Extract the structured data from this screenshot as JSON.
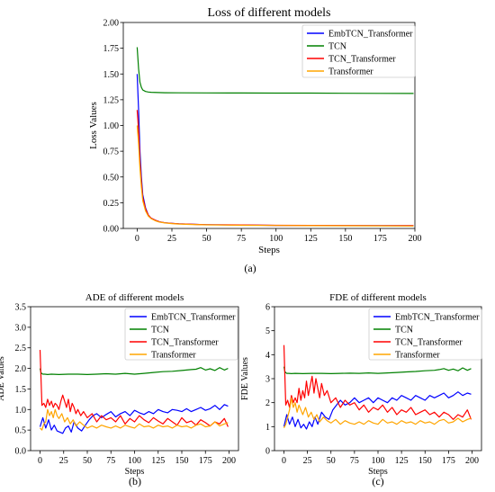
{
  "captions": [
    "(a)",
    "(b)",
    "(c)"
  ],
  "chart_data": [
    {
      "type": "line",
      "title": "Loss of different models",
      "xlabel": "Steps",
      "ylabel": "Loss Values",
      "xlim": [
        -10,
        200
      ],
      "ylim": [
        0,
        2.0
      ],
      "xticks": [
        0,
        25,
        50,
        75,
        100,
        125,
        150,
        175,
        200
      ],
      "yticks": [
        0.0,
        0.25,
        0.5,
        0.75,
        1.0,
        1.25,
        1.5,
        1.75,
        2.0
      ],
      "ytick_labels": [
        "0.00",
        "0.25",
        "0.50",
        "0.75",
        "1.00",
        "1.25",
        "1.50",
        "1.75",
        "2.00"
      ],
      "legend": "top-right",
      "grid": false,
      "series": [
        {
          "name": "EmbTCN_Transformer",
          "color": "#0000ff",
          "x": [
            0,
            1,
            2,
            3,
            4,
            6,
            8,
            10,
            13,
            16,
            20,
            25,
            30,
            40,
            50,
            75,
            100,
            125,
            150,
            175,
            199
          ],
          "y": [
            1.5,
            1.15,
            0.75,
            0.5,
            0.33,
            0.2,
            0.13,
            0.1,
            0.08,
            0.065,
            0.055,
            0.05,
            0.045,
            0.04,
            0.037,
            0.033,
            0.03,
            0.029,
            0.028,
            0.027,
            0.026
          ]
        },
        {
          "name": "TCN",
          "color": "#008000",
          "x": [
            0,
            1,
            2,
            3,
            4,
            6,
            8,
            10,
            15,
            20,
            30,
            50,
            75,
            100,
            125,
            150,
            175,
            199
          ],
          "y": [
            1.76,
            1.55,
            1.42,
            1.37,
            1.345,
            1.33,
            1.325,
            1.322,
            1.32,
            1.318,
            1.317,
            1.316,
            1.315,
            1.314,
            1.314,
            1.313,
            1.312,
            1.311
          ]
        },
        {
          "name": "TCN_Transformer",
          "color": "#ff0000",
          "x": [
            0,
            1,
            2,
            3,
            4,
            6,
            8,
            10,
            13,
            16,
            20,
            25,
            30,
            40,
            50,
            75,
            100,
            125,
            150,
            175,
            199
          ],
          "y": [
            1.15,
            0.95,
            0.65,
            0.45,
            0.3,
            0.19,
            0.13,
            0.1,
            0.08,
            0.065,
            0.055,
            0.05,
            0.045,
            0.04,
            0.037,
            0.034,
            0.031,
            0.03,
            0.029,
            0.028,
            0.027
          ]
        },
        {
          "name": "Transformer",
          "color": "#ffa500",
          "x": [
            0,
            1,
            2,
            3,
            4,
            6,
            8,
            10,
            13,
            16,
            20,
            25,
            30,
            40,
            50,
            75,
            100,
            125,
            150,
            175,
            199
          ],
          "y": [
            1.0,
            0.82,
            0.58,
            0.4,
            0.27,
            0.17,
            0.12,
            0.095,
            0.075,
            0.062,
            0.053,
            0.047,
            0.043,
            0.038,
            0.035,
            0.031,
            0.029,
            0.027,
            0.026,
            0.025,
            0.024
          ]
        }
      ]
    },
    {
      "type": "line",
      "title": "ADE of different models",
      "xlabel": "Steps",
      "ylabel": "ADE Values",
      "xlim": [
        -10,
        210
      ],
      "ylim": [
        0,
        3.5
      ],
      "xticks": [
        0,
        25,
        50,
        75,
        100,
        125,
        150,
        175,
        200
      ],
      "yticks": [
        0,
        0.5,
        1.0,
        1.5,
        2.0,
        2.5,
        3.0,
        3.5
      ],
      "ytick_labels": [
        "0.0",
        "0.5",
        "1.0",
        "1.5",
        "2.0",
        "2.5",
        "3.0",
        "3.5"
      ],
      "legend": "top-right",
      "grid": false,
      "series": [
        {
          "name": "EmbTCN_Transformer",
          "color": "#0000ff",
          "x": [
            0,
            3,
            6,
            9,
            12,
            15,
            18,
            21,
            24,
            27,
            30,
            33,
            36,
            40,
            44,
            48,
            52,
            56,
            60,
            65,
            70,
            75,
            80,
            85,
            90,
            95,
            100,
            105,
            110,
            115,
            120,
            125,
            130,
            135,
            140,
            145,
            150,
            155,
            160,
            165,
            170,
            175,
            180,
            185,
            190,
            195,
            199
          ],
          "y": [
            0.58,
            0.8,
            0.55,
            0.75,
            0.5,
            0.62,
            0.48,
            0.45,
            0.42,
            0.55,
            0.6,
            0.45,
            0.7,
            0.55,
            0.48,
            0.62,
            0.75,
            0.85,
            0.9,
            0.8,
            0.88,
            0.95,
            0.82,
            0.9,
            0.95,
            0.85,
            0.98,
            0.92,
            0.88,
            0.95,
            0.9,
            1.0,
            0.95,
            0.92,
            1.0,
            0.98,
            0.95,
            1.02,
            0.95,
            1.0,
            1.05,
            0.98,
            1.02,
            1.1,
            1.0,
            1.12,
            1.08
          ]
        },
        {
          "name": "TCN",
          "color": "#008000",
          "x": [
            0,
            1,
            2,
            3,
            5,
            8,
            12,
            20,
            30,
            40,
            50,
            60,
            70,
            80,
            90,
            100,
            110,
            120,
            130,
            140,
            150,
            160,
            165,
            170,
            175,
            180,
            185,
            190,
            195,
            199
          ],
          "y": [
            2.0,
            1.9,
            1.87,
            1.86,
            1.86,
            1.85,
            1.86,
            1.85,
            1.86,
            1.86,
            1.85,
            1.86,
            1.87,
            1.86,
            1.88,
            1.86,
            1.88,
            1.9,
            1.92,
            1.93,
            1.95,
            1.97,
            1.98,
            2.02,
            1.96,
            1.99,
            1.95,
            2.02,
            1.96,
            2.0
          ]
        },
        {
          "name": "TCN_Transformer",
          "color": "#ff0000",
          "x": [
            0,
            2,
            4,
            6,
            8,
            10,
            12,
            14,
            16,
            18,
            20,
            22,
            24,
            26,
            28,
            30,
            32,
            34,
            36,
            38,
            40,
            43,
            46,
            50,
            55,
            60,
            65,
            70,
            75,
            80,
            85,
            90,
            95,
            100,
            105,
            110,
            115,
            120,
            125,
            130,
            135,
            140,
            145,
            150,
            155,
            160,
            165,
            170,
            175,
            180,
            185,
            190,
            195,
            199
          ],
          "y": [
            2.45,
            1.1,
            1.15,
            1.05,
            1.25,
            1.1,
            1.2,
            1.05,
            1.15,
            1.1,
            1.0,
            1.2,
            1.35,
            1.2,
            1.05,
            1.25,
            0.95,
            1.15,
            1.05,
            0.9,
            1.0,
            0.85,
            0.95,
            0.8,
            0.9,
            0.7,
            0.85,
            0.75,
            0.8,
            0.7,
            0.85,
            0.65,
            0.78,
            0.7,
            0.85,
            0.75,
            0.68,
            0.8,
            0.72,
            0.65,
            0.78,
            0.7,
            0.62,
            0.8,
            0.68,
            0.72,
            0.62,
            0.75,
            0.68,
            0.6,
            0.7,
            0.65,
            0.78,
            0.58
          ]
        },
        {
          "name": "Transformer",
          "color": "#ffa500",
          "x": [
            0,
            2,
            4,
            6,
            8,
            10,
            12,
            14,
            16,
            18,
            20,
            23,
            26,
            29,
            32,
            35,
            38,
            42,
            46,
            50,
            55,
            60,
            65,
            70,
            75,
            80,
            85,
            90,
            95,
            100,
            105,
            110,
            115,
            120,
            125,
            130,
            135,
            140,
            145,
            150,
            155,
            160,
            165,
            170,
            175,
            180,
            185,
            190,
            195,
            199
          ],
          "y": [
            0.55,
            0.5,
            0.65,
            0.7,
            1.0,
            0.85,
            0.95,
            0.8,
            1.0,
            0.85,
            0.78,
            0.9,
            0.7,
            0.8,
            0.65,
            0.75,
            0.6,
            0.7,
            0.62,
            0.55,
            0.6,
            0.55,
            0.62,
            0.58,
            0.55,
            0.6,
            0.55,
            0.62,
            0.58,
            0.55,
            0.65,
            0.58,
            0.6,
            0.55,
            0.62,
            0.58,
            0.6,
            0.55,
            0.62,
            0.58,
            0.6,
            0.55,
            0.62,
            0.65,
            0.58,
            0.6,
            0.7,
            0.6,
            0.65,
            0.68
          ]
        }
      ]
    },
    {
      "type": "line",
      "title": "FDE of different models",
      "xlabel": "Steps",
      "ylabel": "FDE Values",
      "xlim": [
        -10,
        210
      ],
      "ylim": [
        0,
        6
      ],
      "xticks": [
        0,
        25,
        50,
        75,
        100,
        125,
        150,
        175,
        200
      ],
      "yticks": [
        0,
        1,
        2,
        3,
        4,
        5,
        6
      ],
      "ytick_labels": [
        "0",
        "1",
        "2",
        "3",
        "4",
        "5",
        "6"
      ],
      "legend": "top-right",
      "grid": false,
      "series": [
        {
          "name": "EmbTCN_Transformer",
          "color": "#0000ff",
          "x": [
            0,
            3,
            6,
            9,
            12,
            15,
            18,
            21,
            24,
            27,
            30,
            33,
            36,
            40,
            44,
            48,
            52,
            56,
            60,
            65,
            70,
            75,
            80,
            85,
            90,
            95,
            100,
            105,
            110,
            115,
            120,
            125,
            130,
            135,
            140,
            145,
            150,
            155,
            160,
            165,
            170,
            175,
            180,
            185,
            190,
            195,
            199
          ],
          "y": [
            1.0,
            1.5,
            1.1,
            1.4,
            1.0,
            1.3,
            0.95,
            1.1,
            0.9,
            1.2,
            1.0,
            1.4,
            1.1,
            1.6,
            1.4,
            1.3,
            1.7,
            1.9,
            2.1,
            1.9,
            2.0,
            2.2,
            2.0,
            2.1,
            2.2,
            2.0,
            2.2,
            2.1,
            2.0,
            2.2,
            2.1,
            2.3,
            2.2,
            2.1,
            2.3,
            2.2,
            2.1,
            2.3,
            2.2,
            2.3,
            2.4,
            2.2,
            2.3,
            2.45,
            2.3,
            2.4,
            2.35
          ]
        },
        {
          "name": "TCN",
          "color": "#008000",
          "x": [
            0,
            1,
            2,
            3,
            5,
            8,
            12,
            20,
            30,
            40,
            50,
            60,
            70,
            80,
            90,
            100,
            110,
            120,
            130,
            140,
            150,
            160,
            165,
            170,
            175,
            180,
            185,
            190,
            195,
            199
          ],
          "y": [
            3.5,
            3.3,
            3.25,
            3.22,
            3.22,
            3.21,
            3.22,
            3.21,
            3.22,
            3.22,
            3.21,
            3.22,
            3.23,
            3.22,
            3.24,
            3.22,
            3.24,
            3.26,
            3.28,
            3.3,
            3.33,
            3.35,
            3.38,
            3.42,
            3.35,
            3.4,
            3.33,
            3.45,
            3.35,
            3.42
          ]
        },
        {
          "name": "TCN_Transformer",
          "color": "#ff0000",
          "x": [
            0,
            2,
            4,
            6,
            8,
            10,
            12,
            14,
            16,
            18,
            20,
            22,
            24,
            26,
            28,
            30,
            32,
            34,
            36,
            38,
            40,
            43,
            46,
            50,
            55,
            60,
            65,
            70,
            75,
            80,
            85,
            90,
            95,
            100,
            105,
            110,
            115,
            120,
            125,
            130,
            135,
            140,
            145,
            150,
            155,
            160,
            165,
            170,
            175,
            180,
            185,
            190,
            195,
            199
          ],
          "y": [
            4.4,
            1.9,
            2.1,
            1.8,
            2.3,
            2.0,
            2.2,
            2.0,
            2.6,
            2.1,
            2.5,
            2.2,
            2.9,
            2.3,
            2.7,
            3.1,
            2.4,
            3.0,
            2.6,
            2.2,
            2.8,
            2.3,
            2.5,
            2.0,
            2.2,
            1.8,
            2.1,
            1.9,
            2.0,
            1.7,
            1.9,
            1.6,
            1.8,
            1.7,
            1.9,
            1.6,
            1.8,
            1.5,
            1.7,
            1.6,
            1.8,
            1.5,
            1.6,
            1.7,
            1.5,
            1.6,
            1.4,
            1.6,
            1.5,
            1.3,
            1.5,
            1.4,
            1.7,
            1.3
          ]
        },
        {
          "name": "Transformer",
          "color": "#ffa500",
          "x": [
            0,
            2,
            4,
            6,
            8,
            10,
            12,
            14,
            16,
            18,
            20,
            23,
            26,
            29,
            32,
            35,
            38,
            42,
            46,
            50,
            55,
            60,
            65,
            70,
            75,
            80,
            85,
            90,
            95,
            100,
            105,
            110,
            115,
            120,
            125,
            130,
            135,
            140,
            145,
            150,
            155,
            160,
            165,
            170,
            175,
            180,
            185,
            190,
            195,
            199
          ],
          "y": [
            0.95,
            1.1,
            1.4,
            1.7,
            2.2,
            1.8,
            2.0,
            1.6,
            1.9,
            1.7,
            1.5,
            1.8,
            1.4,
            1.6,
            1.3,
            1.5,
            1.2,
            1.4,
            1.25,
            1.15,
            1.3,
            1.1,
            1.25,
            1.15,
            1.1,
            1.2,
            1.1,
            1.25,
            1.15,
            1.1,
            1.3,
            1.15,
            1.2,
            1.1,
            1.25,
            1.15,
            1.2,
            1.1,
            1.25,
            1.15,
            1.2,
            1.1,
            1.25,
            1.3,
            1.15,
            1.2,
            1.35,
            1.2,
            1.3,
            1.35
          ]
        }
      ]
    }
  ]
}
